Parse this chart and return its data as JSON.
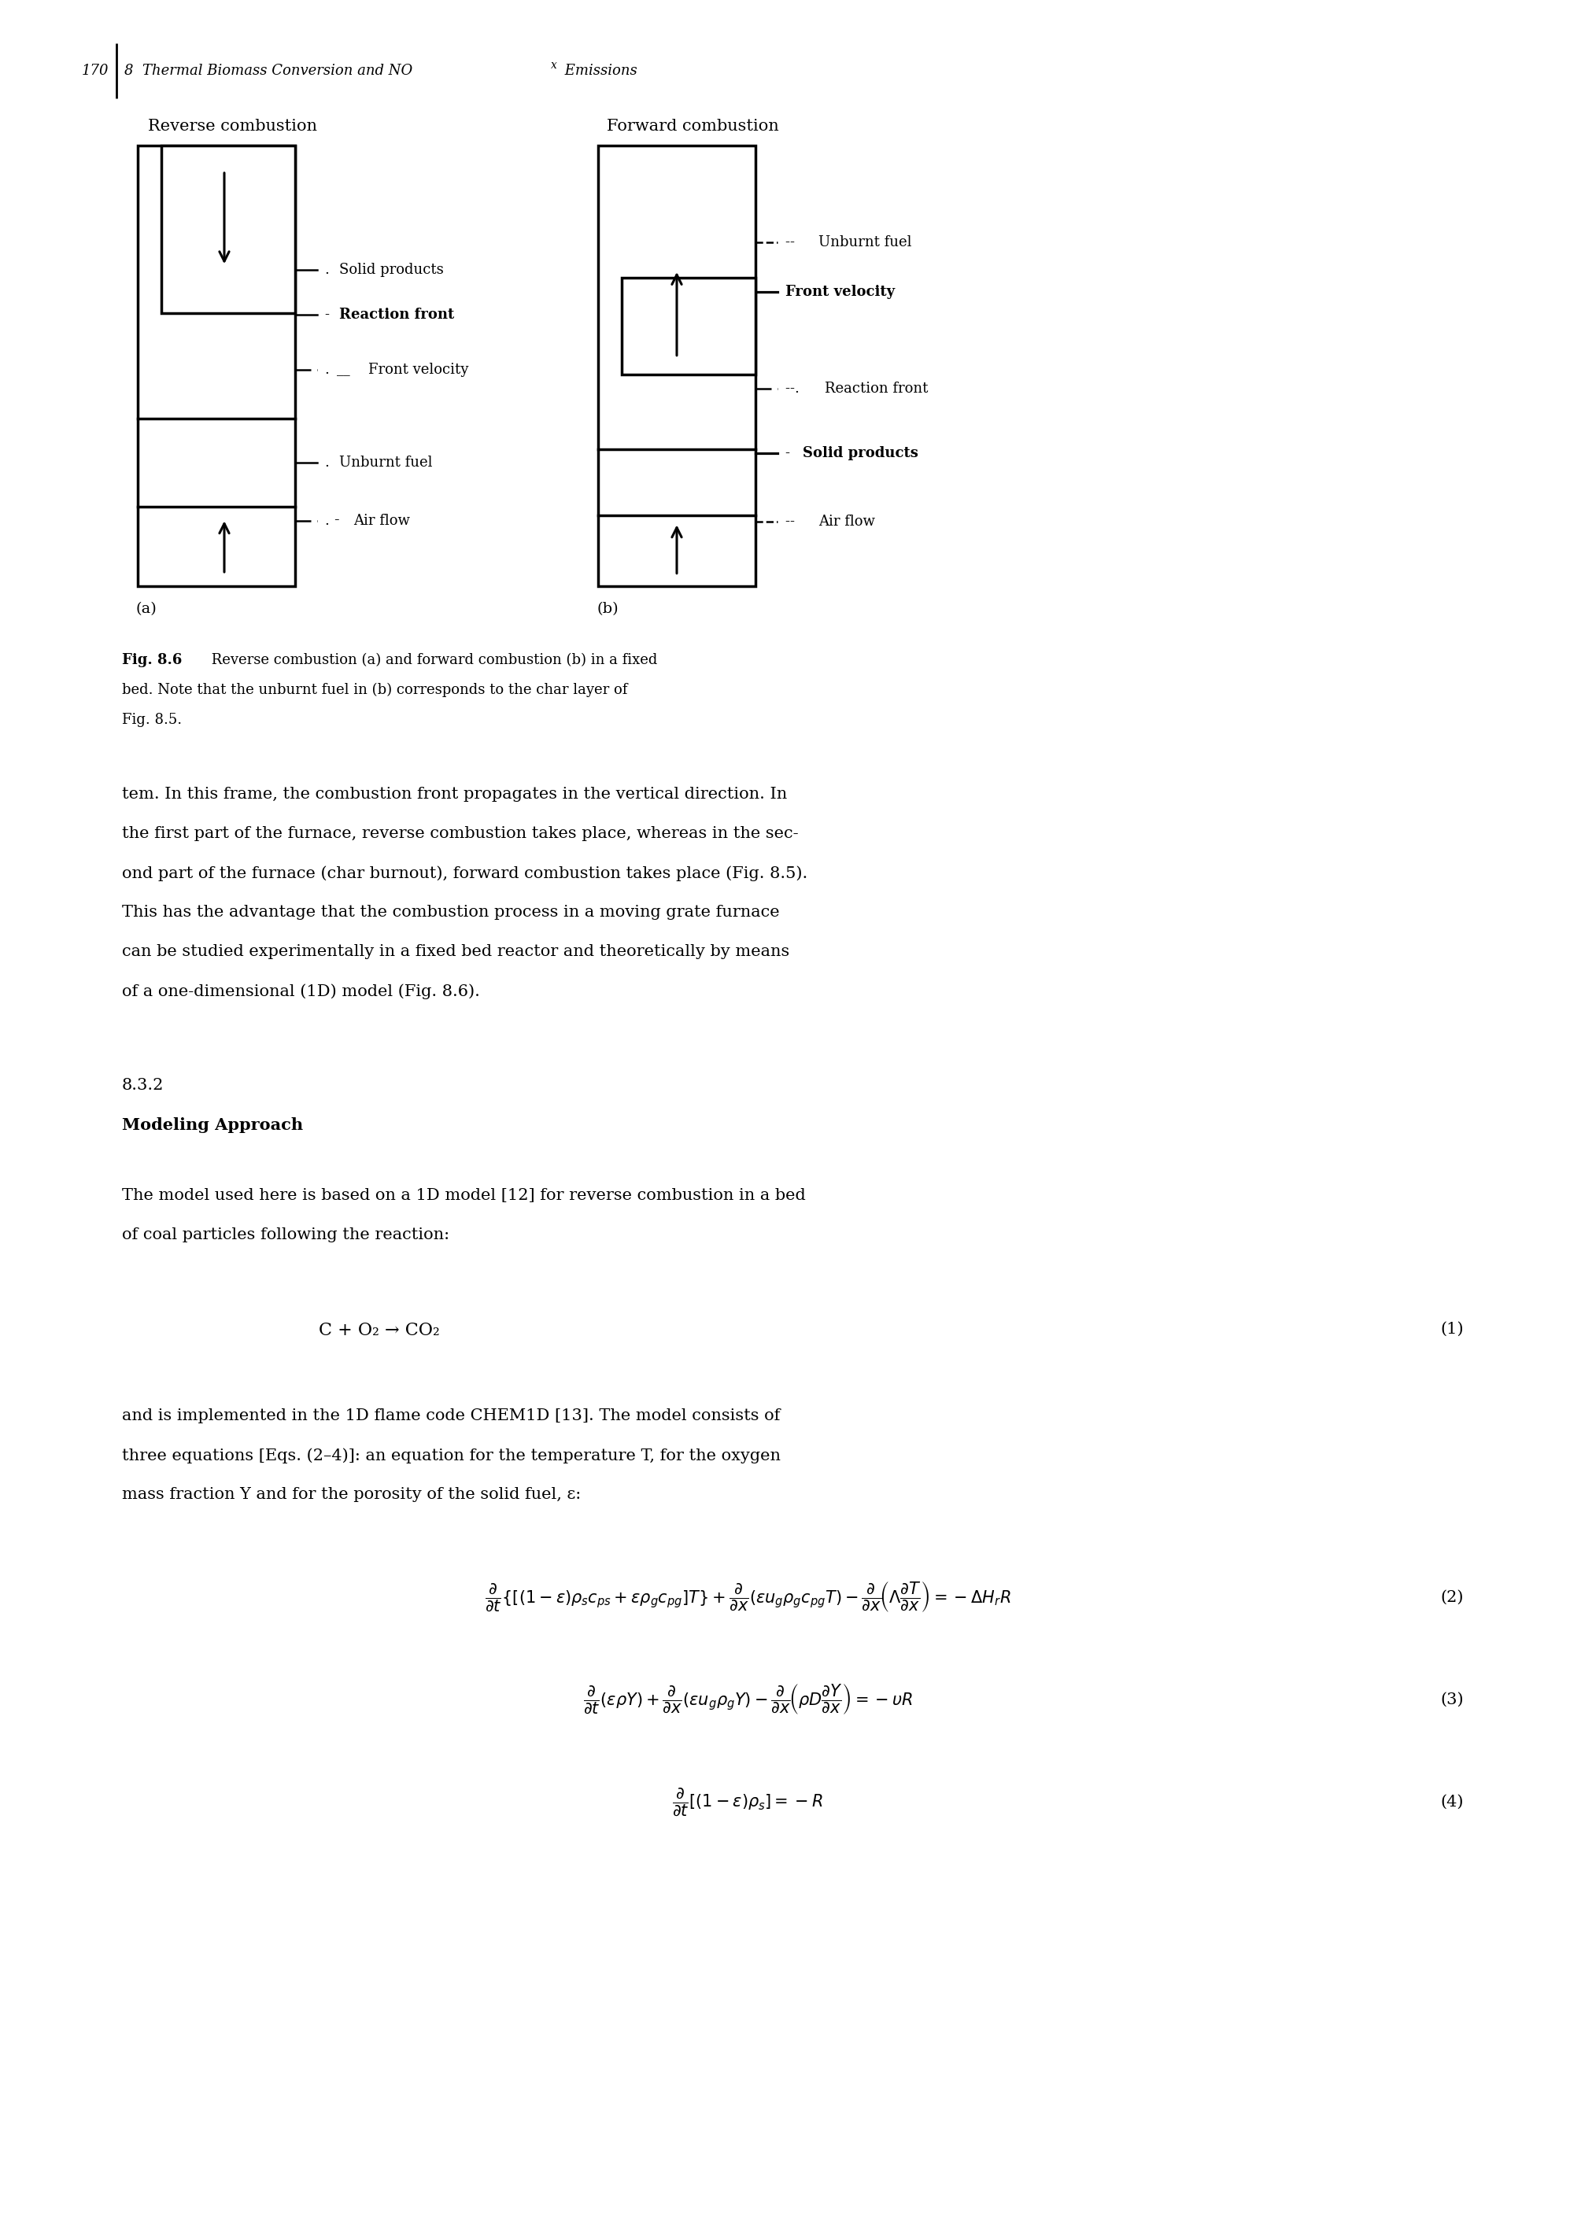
{
  "page_number": "170",
  "header_text": "8  Thermal Biomass Conversion and NOₓ Emissions",
  "fig_label": "Fig. 8.6",
  "fig_caption_bold": "Fig. 8.6",
  "fig_caption_rest": " Reverse combustion (a) and forward combustion (b) in a fixed\nbed. Note that the unburnt fuel in (b) corresponds to the char layer of\nFig. 8.5.",
  "reverse_title": "Reverse combustion",
  "forward_title": "Forward combustion",
  "label_a": "(a)",
  "label_b": "(b)",
  "section_number": "8.3.2",
  "section_title": "Modeling Approach",
  "para1": "tem. In this frame, the combustion front propagates in the vertical direction. In\nthe first part of the furnace, reverse combustion takes place, whereas in the sec-\nond part of the furnace (char burnout), forward combustion takes place (Fig. 8.5).\nThis has the advantage that the combustion process in a moving grate furnace\ncan be studied experimentally in a fixed bed reactor and theoretically by means\nof a one-dimensional (1D) model (Fig. 8.6).",
  "para2": "The model used here is based on a 1D model [12] for reverse combustion in a bed\nof coal particles following the reaction:",
  "equation1_text": "C + O₂ → CO₂",
  "eq1_number": "(1)",
  "para3": "and is implemented in the 1D flame code CHEM1D [13]. The model consists of\nthree equations [Eqs. (2–4)]: an equation for the temperature T, for the oxygen\nmass fraction Y and for the porosity of the solid fuel, ε:",
  "background_color": "#ffffff",
  "text_color": "#000000"
}
